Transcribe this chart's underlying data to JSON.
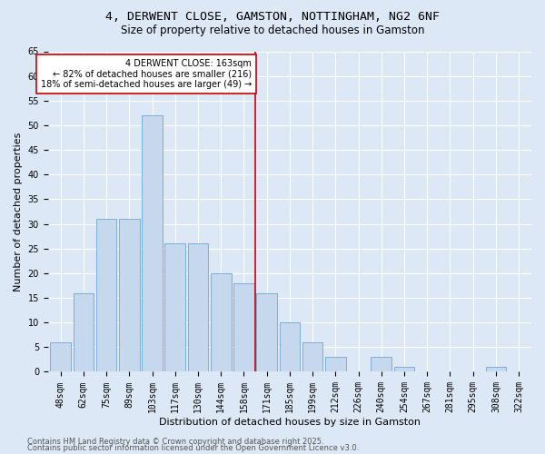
{
  "title1": "4, DERWENT CLOSE, GAMSTON, NOTTINGHAM, NG2 6NF",
  "title2": "Size of property relative to detached houses in Gamston",
  "xlabel": "Distribution of detached houses by size in Gamston",
  "ylabel": "Number of detached properties",
  "bins": [
    "48sqm",
    "62sqm",
    "75sqm",
    "89sqm",
    "103sqm",
    "117sqm",
    "130sqm",
    "144sqm",
    "158sqm",
    "171sqm",
    "185sqm",
    "199sqm",
    "212sqm",
    "226sqm",
    "240sqm",
    "254sqm",
    "267sqm",
    "281sqm",
    "295sqm",
    "308sqm",
    "322sqm"
  ],
  "counts": [
    6,
    16,
    31,
    31,
    52,
    26,
    26,
    20,
    18,
    16,
    10,
    6,
    3,
    0,
    3,
    1,
    0,
    0,
    0,
    1,
    0
  ],
  "bar_color": "#c5d8ee",
  "bar_edge_color": "#7bafd4",
  "property_line_x": 8.5,
  "annotation_text": "4 DERWENT CLOSE: 163sqm\n← 82% of detached houses are smaller (216)\n18% of semi-detached houses are larger (49) →",
  "annotation_box_color": "#ffffff",
  "annotation_box_edge": "#cc0000",
  "vline_color": "#cc0000",
  "ylim": [
    0,
    65
  ],
  "yticks": [
    0,
    5,
    10,
    15,
    20,
    25,
    30,
    35,
    40,
    45,
    50,
    55,
    60,
    65
  ],
  "footer1": "Contains HM Land Registry data © Crown copyright and database right 2025.",
  "footer2": "Contains public sector information licensed under the Open Government Licence v3.0.",
  "bg_color": "#dce8f5",
  "plot_bg_color": "#dce8f5",
  "grid_color": "#ffffff",
  "title_fontsize": 9.5,
  "subtitle_fontsize": 8.5,
  "axis_label_fontsize": 8,
  "tick_fontsize": 7,
  "annot_fontsize": 7,
  "footer_fontsize": 6
}
